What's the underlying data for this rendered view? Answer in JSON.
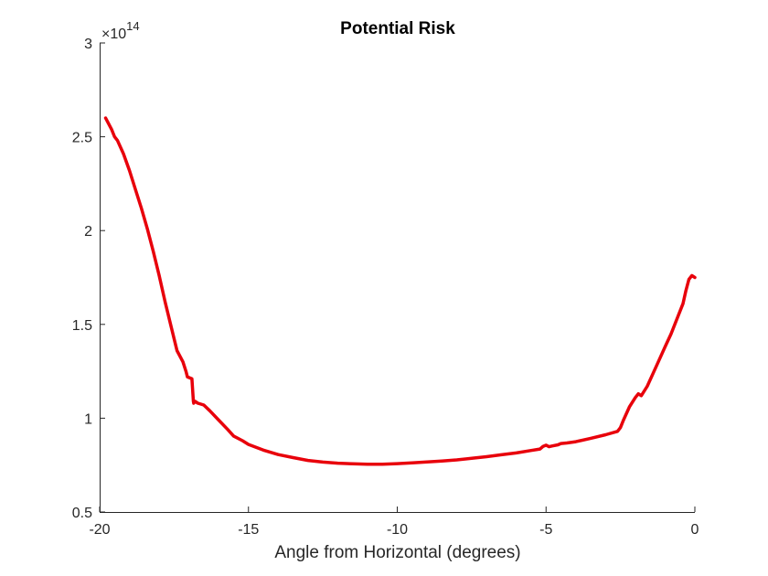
{
  "chart_data": {
    "type": "line",
    "title": "Potential Risk",
    "xlabel": "Angle from Horizontal (degrees)",
    "ylabel": "",
    "xlim": [
      -20,
      0
    ],
    "ylim": [
      0.5,
      3
    ],
    "xticks": [
      -20,
      -15,
      -10,
      -5,
      0
    ],
    "yticks": [
      0.5,
      1,
      1.5,
      2,
      2.5,
      3
    ],
    "xtick_labels": [
      "-20",
      "-15",
      "-10",
      "-5",
      "0"
    ],
    "ytick_labels": [
      "0.5",
      "1",
      "1.5",
      "2",
      "2.5",
      "3"
    ],
    "y_exponent_base": "×10",
    "y_exponent_power": "14",
    "grid": false,
    "line_color": "#e8000b",
    "series": [
      {
        "x": [
          -19.8,
          -19.6,
          -19.5,
          -19.4,
          -19.2,
          -19.0,
          -18.8,
          -18.6,
          -18.4,
          -18.2,
          -18.0,
          -17.8,
          -17.6,
          -17.4,
          -17.2,
          -17.1,
          -17.05,
          -16.9,
          -16.85,
          -16.84,
          -16.8,
          -16.7,
          -16.6,
          -16.5,
          -16.3,
          -16.0,
          -15.7,
          -15.5,
          -15.2,
          -15.0,
          -14.5,
          -14.0,
          -13.5,
          -13.0,
          -12.5,
          -12.0,
          -11.5,
          -11.0,
          -10.5,
          -10.0,
          -9.5,
          -9.0,
          -8.5,
          -8.0,
          -7.5,
          -7.0,
          -6.5,
          -6.0,
          -5.5,
          -5.2,
          -5.1,
          -5.0,
          -4.9,
          -4.8,
          -4.6,
          -4.5,
          -4.3,
          -4.0,
          -3.5,
          -3.0,
          -2.6,
          -2.5,
          -2.4,
          -2.2,
          -2.0,
          -1.9,
          -1.8,
          -1.6,
          -1.4,
          -1.2,
          -1.0,
          -0.8,
          -0.6,
          -0.4,
          -0.3,
          -0.2,
          -0.1,
          0.0
        ],
        "y": [
          2.6,
          2.54,
          2.5,
          2.48,
          2.41,
          2.32,
          2.22,
          2.12,
          2.01,
          1.89,
          1.76,
          1.62,
          1.49,
          1.36,
          1.3,
          1.25,
          1.22,
          1.21,
          1.09,
          1.08,
          1.09,
          1.08,
          1.075,
          1.07,
          1.04,
          0.99,
          0.94,
          0.905,
          0.88,
          0.86,
          0.83,
          0.806,
          0.79,
          0.775,
          0.766,
          0.76,
          0.757,
          0.755,
          0.755,
          0.758,
          0.762,
          0.767,
          0.772,
          0.778,
          0.786,
          0.795,
          0.805,
          0.815,
          0.828,
          0.836,
          0.85,
          0.856,
          0.848,
          0.852,
          0.858,
          0.865,
          0.868,
          0.875,
          0.893,
          0.912,
          0.93,
          0.95,
          0.99,
          1.06,
          1.11,
          1.13,
          1.12,
          1.17,
          1.24,
          1.31,
          1.38,
          1.45,
          1.53,
          1.61,
          1.68,
          1.74,
          1.76,
          1.75
        ]
      }
    ]
  }
}
